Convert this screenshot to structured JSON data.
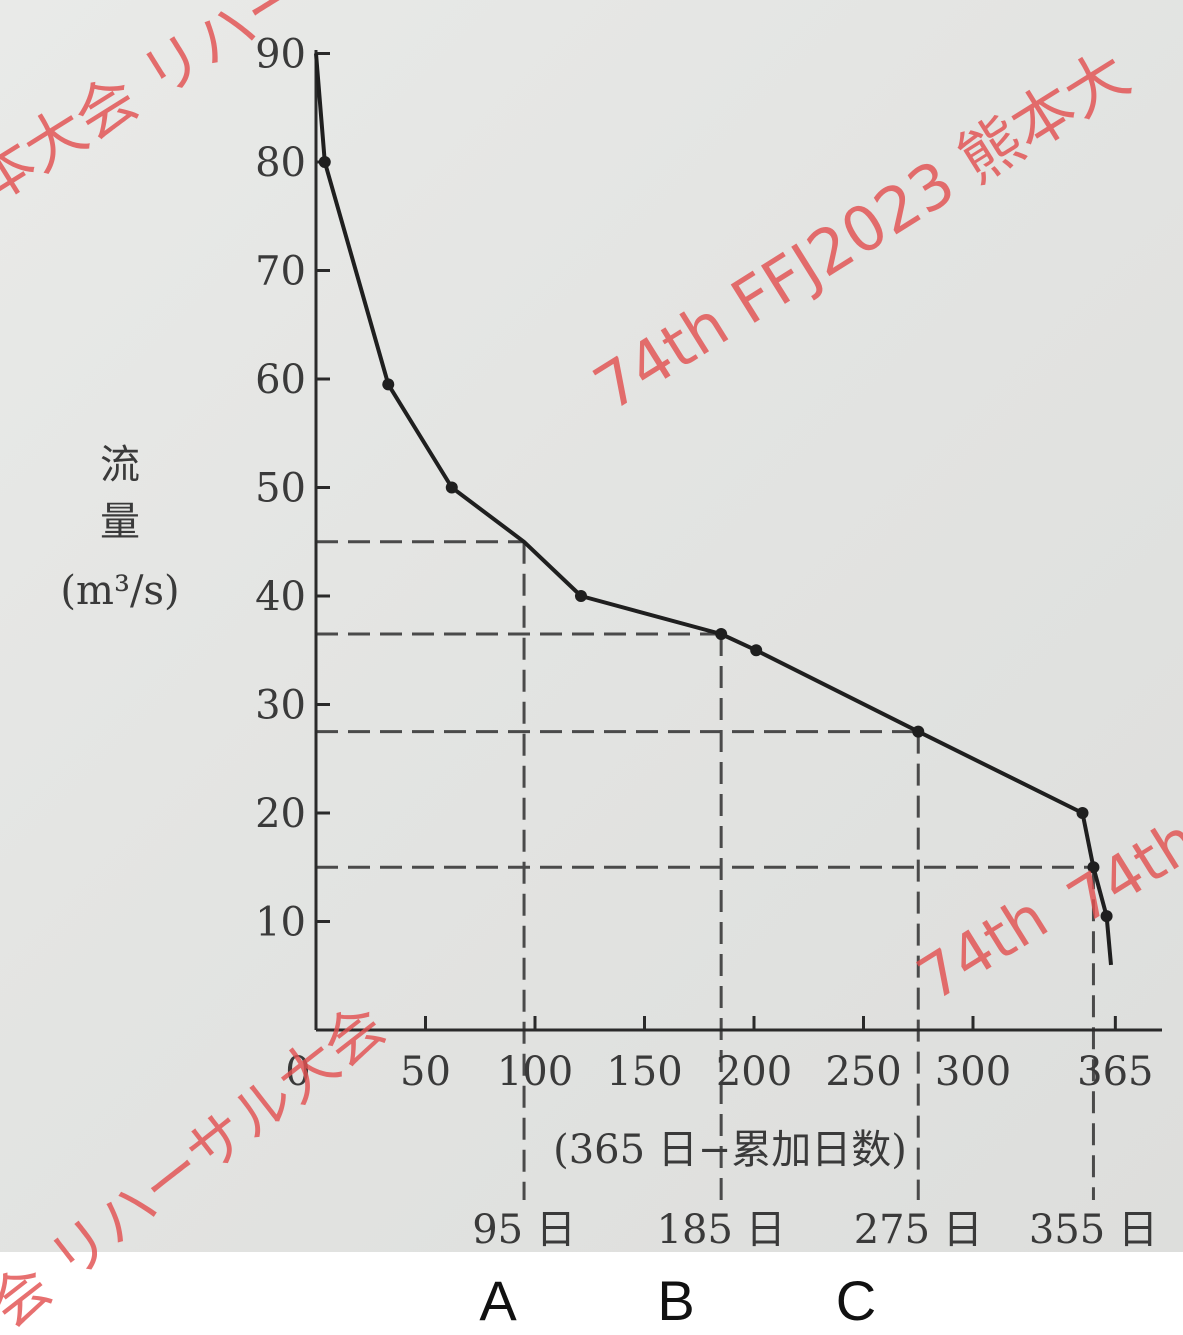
{
  "chart_data": {
    "type": "line",
    "ylabel_lines": [
      "流",
      "量",
      "(m³/s)"
    ],
    "xlabel": "(365 日−累加日数)",
    "x_ticks": [
      {
        "value": 0,
        "label": "0"
      },
      {
        "value": 50,
        "label": "50"
      },
      {
        "value": 100,
        "label": "100"
      },
      {
        "value": 150,
        "label": "150"
      },
      {
        "value": 200,
        "label": "200"
      },
      {
        "value": 250,
        "label": "250"
      },
      {
        "value": 300,
        "label": "300"
      },
      {
        "value": 365,
        "label": "365"
      }
    ],
    "y_ticks": [
      {
        "value": 10,
        "label": "10"
      },
      {
        "value": 20,
        "label": "20"
      },
      {
        "value": 30,
        "label": "30"
      },
      {
        "value": 40,
        "label": "40"
      },
      {
        "value": 50,
        "label": "50"
      },
      {
        "value": 60,
        "label": "60"
      },
      {
        "value": 70,
        "label": "70"
      },
      {
        "value": 80,
        "label": "80"
      },
      {
        "value": 90,
        "label": "90"
      }
    ],
    "xlim": [
      0,
      365
    ],
    "ylim": [
      0,
      90
    ],
    "curve": [
      {
        "x": 0,
        "y": 90
      },
      {
        "x": 4,
        "y": 80,
        "marker": true
      },
      {
        "x": 33,
        "y": 59.5,
        "marker": true
      },
      {
        "x": 62,
        "y": 50,
        "marker": true
      },
      {
        "x": 95,
        "y": 45
      },
      {
        "x": 121,
        "y": 40,
        "marker": true
      },
      {
        "x": 185,
        "y": 36.5,
        "marker": true
      },
      {
        "x": 201,
        "y": 35,
        "marker": true
      },
      {
        "x": 275,
        "y": 27.5,
        "marker": true
      },
      {
        "x": 350,
        "y": 20,
        "marker": true
      },
      {
        "x": 355,
        "y": 15,
        "marker": true
      },
      {
        "x": 361,
        "y": 10.5,
        "marker": true
      },
      {
        "x": 363,
        "y": 6
      }
    ],
    "reference_lines": [
      {
        "day": 95,
        "flow": 45,
        "label": "95 日"
      },
      {
        "day": 185,
        "flow": 36.5,
        "label": "185 日"
      },
      {
        "day": 275,
        "flow": 27.5,
        "label": "275 日"
      },
      {
        "day": 355,
        "flow": 15,
        "label": "355 日"
      }
    ],
    "letters": [
      "A",
      "B",
      "C"
    ]
  },
  "watermarks": {
    "top_left": "本大会 リハーサ",
    "top_right": "74th FFJ2023 熊本大",
    "right_mid": "74th FFJ",
    "right_low": "74th",
    "bottom_left": "会 リハーサル大会"
  },
  "colors": {
    "line": "#1f1f1f",
    "dashes": "#4a4a4a",
    "watermark": "#e25050"
  }
}
